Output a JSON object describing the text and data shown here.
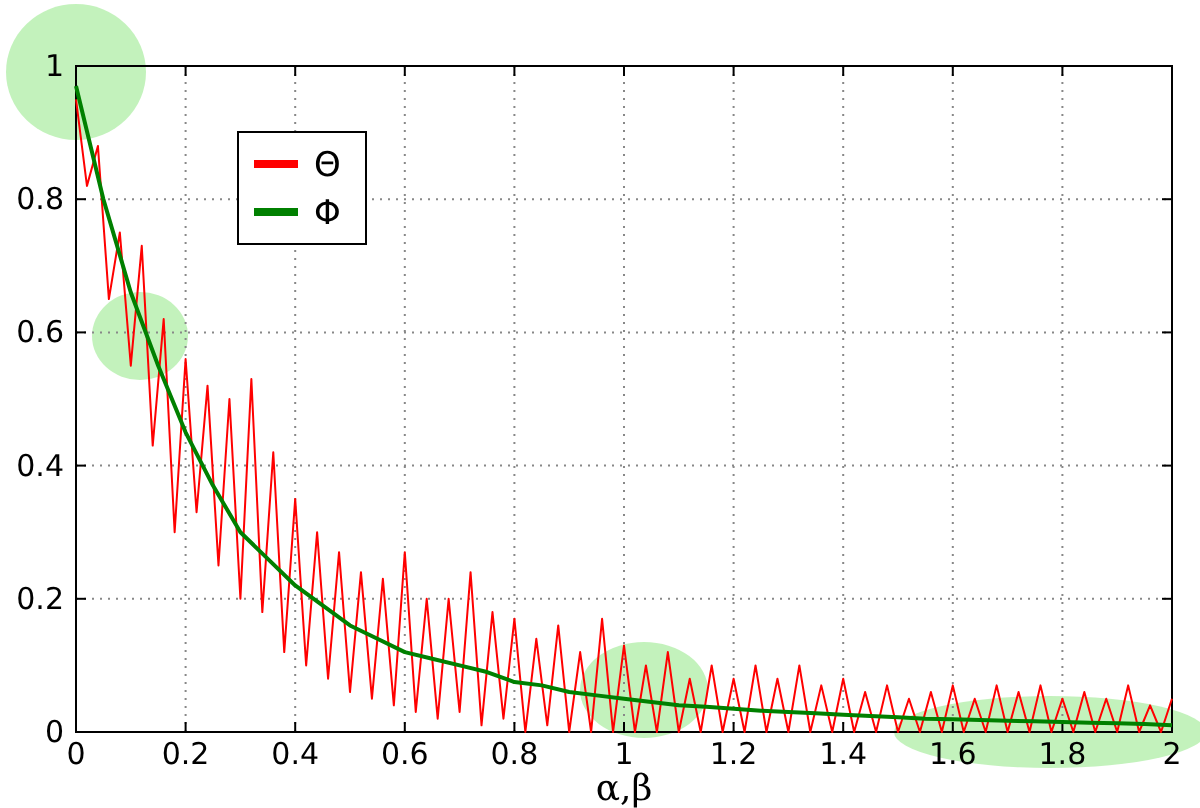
{
  "chart_data": {
    "type": "line",
    "xlabel": "α,β",
    "xlim": [
      0,
      2
    ],
    "xticks": [
      0,
      0.2,
      0.4,
      0.6,
      0.8,
      1,
      1.2,
      1.4,
      1.6,
      1.8,
      2
    ],
    "ylim": [
      0,
      1
    ],
    "yticks": [
      0,
      0.2,
      0.4,
      0.6,
      0.8,
      1
    ],
    "grid": true,
    "legend": "top left",
    "marker": "none",
    "line_style": "solid",
    "series": [
      {
        "name": "Θ",
        "color": "#ff0000",
        "x": [
          0,
          0.02,
          0.04,
          0.06,
          0.08,
          0.1,
          0.12,
          0.14,
          0.16,
          0.18,
          0.2,
          0.22,
          0.24,
          0.26,
          0.28,
          0.3,
          0.32,
          0.34,
          0.36,
          0.38,
          0.4,
          0.42,
          0.44,
          0.46,
          0.48,
          0.5,
          0.52,
          0.54,
          0.56,
          0.58,
          0.6,
          0.62,
          0.64,
          0.66,
          0.68,
          0.7,
          0.72,
          0.74,
          0.76,
          0.78,
          0.8,
          0.82,
          0.84,
          0.86,
          0.88,
          0.9,
          0.92,
          0.94,
          0.96,
          0.98,
          1,
          1.02,
          1.04,
          1.06,
          1.08,
          1.1,
          1.12,
          1.14,
          1.16,
          1.18,
          1.2,
          1.22,
          1.24,
          1.26,
          1.28,
          1.3,
          1.32,
          1.34,
          1.36,
          1.38,
          1.4,
          1.42,
          1.44,
          1.46,
          1.48,
          1.5,
          1.52,
          1.54,
          1.56,
          1.58,
          1.6,
          1.62,
          1.64,
          1.66,
          1.68,
          1.7,
          1.72,
          1.74,
          1.76,
          1.78,
          1.8,
          1.82,
          1.84,
          1.86,
          1.88,
          1.9,
          1.92,
          1.94,
          1.96,
          1.98,
          2
        ],
        "values": [
          0.95,
          0.82,
          0.88,
          0.65,
          0.75,
          0.55,
          0.73,
          0.43,
          0.62,
          0.3,
          0.56,
          0.33,
          0.52,
          0.25,
          0.5,
          0.2,
          0.53,
          0.18,
          0.42,
          0.12,
          0.35,
          0.1,
          0.3,
          0.08,
          0.27,
          0.06,
          0.24,
          0.05,
          0.23,
          0.04,
          0.27,
          0.03,
          0.2,
          0.02,
          0.2,
          0.03,
          0.24,
          0.01,
          0.18,
          0.02,
          0.17,
          0,
          0.14,
          0.01,
          0.16,
          0,
          0.12,
          0,
          0.17,
          0,
          0.13,
          0,
          0.1,
          0,
          0.12,
          0,
          0.08,
          0,
          0.1,
          0,
          0.08,
          0,
          0.1,
          0,
          0.08,
          0,
          0.1,
          0,
          0.07,
          0,
          0.08,
          0,
          0.06,
          0,
          0.07,
          0,
          0.05,
          0,
          0.06,
          0,
          0.07,
          0,
          0.05,
          0,
          0.07,
          0,
          0.06,
          0,
          0.07,
          0,
          0.05,
          0,
          0.06,
          0,
          0.05,
          0,
          0.07,
          0,
          0.04,
          0,
          0.05
        ]
      },
      {
        "name": "Φ",
        "color": "#008000",
        "x": [
          0,
          0.05,
          0.1,
          0.15,
          0.2,
          0.25,
          0.3,
          0.35,
          0.4,
          0.45,
          0.5,
          0.55,
          0.6,
          0.65,
          0.7,
          0.75,
          0.8,
          0.85,
          0.9,
          0.95,
          1,
          1.05,
          1.1,
          1.15,
          1.2,
          1.25,
          1.3,
          1.35,
          1.4,
          1.45,
          1.5,
          1.55,
          1.6,
          1.65,
          1.7,
          1.75,
          1.8,
          1.85,
          1.9,
          1.95,
          2
        ],
        "values": [
          0.97,
          0.8,
          0.66,
          0.55,
          0.45,
          0.37,
          0.3,
          0.26,
          0.22,
          0.19,
          0.16,
          0.14,
          0.12,
          0.11,
          0.1,
          0.09,
          0.075,
          0.07,
          0.06,
          0.055,
          0.05,
          0.045,
          0.04,
          0.038,
          0.035,
          0.032,
          0.03,
          0.028,
          0.026,
          0.024,
          0.022,
          0.02,
          0.019,
          0.018,
          0.017,
          0.016,
          0.015,
          0.014,
          0.013,
          0.012,
          0.01
        ]
      }
    ]
  }
}
